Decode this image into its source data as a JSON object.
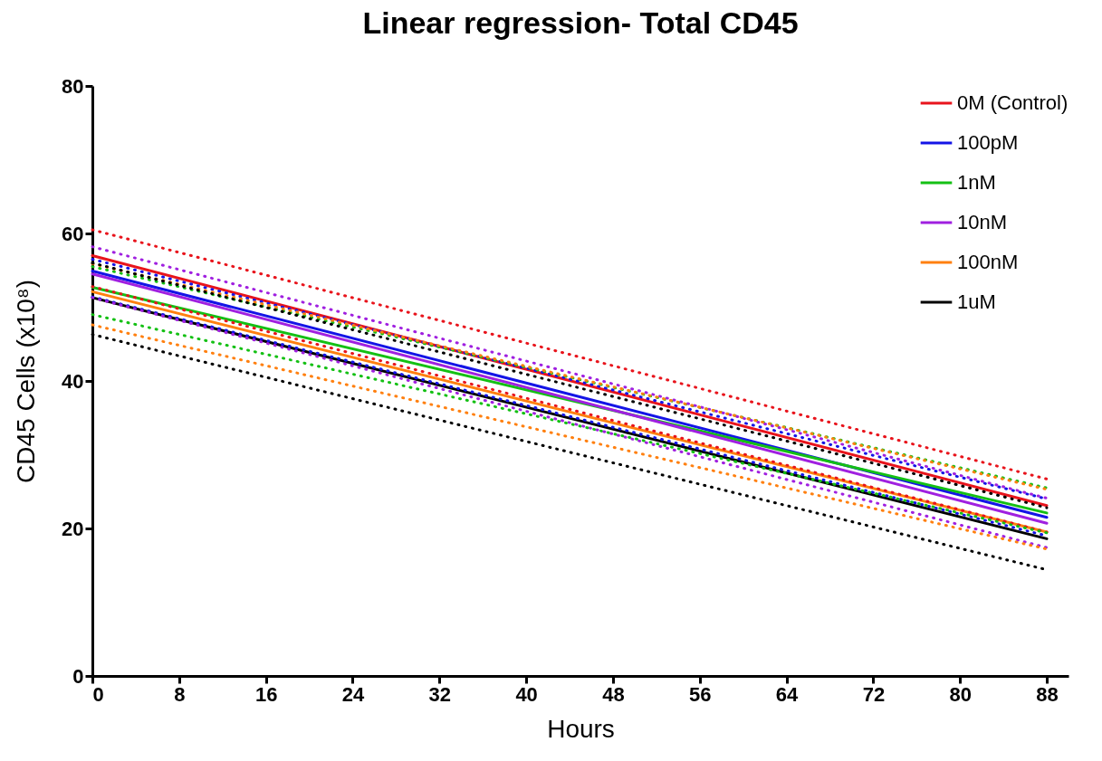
{
  "chart_data": {
    "type": "line",
    "title": "Linear regression- Total CD45",
    "xlabel": "Hours",
    "ylabel": "CD45 Cells (x10⁸)",
    "x": [
      0,
      88
    ],
    "xlim": [
      0,
      90
    ],
    "xticks": [
      0,
      8,
      16,
      24,
      32,
      40,
      48,
      56,
      64,
      72,
      80,
      88
    ],
    "ylim": [
      0,
      80
    ],
    "yticks": [
      0,
      20,
      40,
      60,
      80
    ],
    "grid": false,
    "legend": "top right",
    "marker": "none",
    "line_style": "solid",
    "series": [
      {
        "name": "0M (Control)",
        "color": "#e8141c",
        "values": [
          57.0,
          23.1
        ]
      },
      {
        "name": "100pM",
        "color": "#1414e6",
        "values": [
          54.9,
          21.5
        ]
      },
      {
        "name": "1nM",
        "color": "#14c014",
        "values": [
          52.7,
          22.1
        ]
      },
      {
        "name": "10nM",
        "color": "#a020e0",
        "values": [
          54.5,
          20.7
        ]
      },
      {
        "name": "100nM",
        "color": "#ff8010",
        "values": [
          52.1,
          19.5
        ]
      },
      {
        "name": "1uM",
        "color": "#000000",
        "values": [
          51.3,
          18.6
        ]
      },
      {
        "color": "#e8141c",
        "line_style": "dotted",
        "values": [
          60.5,
          26.7
        ]
      },
      {
        "color": "#e8141c",
        "line_style": "dotted",
        "values": [
          52.8,
          19.5
        ]
      },
      {
        "color": "#1414e6",
        "line_style": "dotted",
        "values": [
          56.5,
          24.0
        ]
      },
      {
        "color": "#1414e6",
        "line_style": "dotted",
        "values": [
          51.4,
          19.0
        ]
      },
      {
        "color": "#14c014",
        "line_style": "dotted",
        "values": [
          55.5,
          25.5
        ]
      },
      {
        "color": "#14c014",
        "line_style": "dotted",
        "values": [
          49.0,
          19.4
        ]
      },
      {
        "color": "#a020e0",
        "line_style": "dotted",
        "values": [
          58.2,
          24.1
        ]
      },
      {
        "color": "#a020e0",
        "line_style": "dotted",
        "values": [
          51.3,
          17.4
        ]
      },
      {
        "color": "#ff8010",
        "line_style": "dotted",
        "values": [
          55.9,
          25.3
        ]
      },
      {
        "color": "#ff8010",
        "line_style": "dotted",
        "values": [
          47.6,
          17.2
        ]
      },
      {
        "color": "#000000",
        "line_style": "dotted",
        "values": [
          56.0,
          22.8
        ]
      },
      {
        "color": "#000000",
        "line_style": "dotted",
        "values": [
          46.3,
          14.4
        ]
      }
    ]
  }
}
